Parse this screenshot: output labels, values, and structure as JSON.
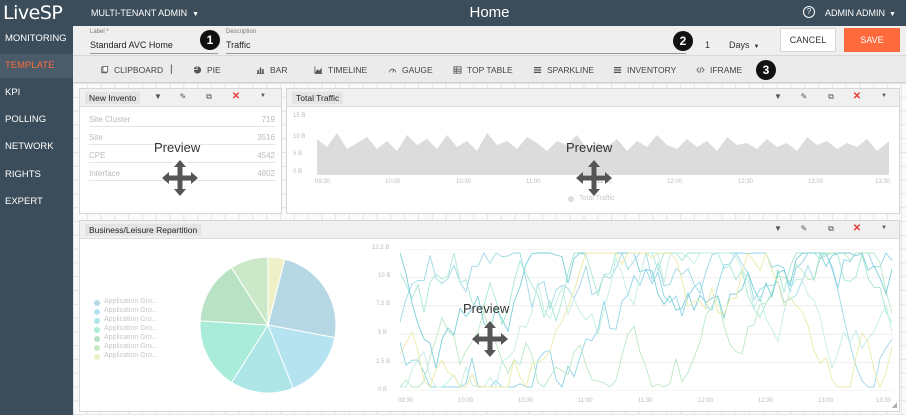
{
  "app": {
    "logo": "LiveSP",
    "tenant": "MULTI-TENANT ADMIN",
    "page_title": "Home",
    "user": "ADMIN ADMIN"
  },
  "sidebar": {
    "items": [
      {
        "label": "MONITORING",
        "active": false
      },
      {
        "label": "TEMPLATE",
        "active": true
      },
      {
        "label": "KPI",
        "active": false
      },
      {
        "label": "POLLING",
        "active": false
      },
      {
        "label": "NETWORK",
        "active": false
      },
      {
        "label": "RIGHTS",
        "active": false
      },
      {
        "label": "EXPERT",
        "active": false
      }
    ]
  },
  "editbar": {
    "label_caption": "Label *",
    "label_value": "Standard AVC Home",
    "desc_caption": "Description",
    "desc_value": "Traffic",
    "days_num": "1",
    "days_unit": "Days",
    "cancel": "CANCEL",
    "save": "SAVE",
    "badges": [
      "1",
      "2",
      "3"
    ]
  },
  "toolbar": {
    "items": [
      "CLIPBOARD",
      "PIE",
      "BAR",
      "TIMELINE",
      "GAUGE",
      "TOP TABLE",
      "SPARKLINE",
      "INVENTORY",
      "IFRAME"
    ],
    "separator": "|"
  },
  "preview_label": "Preview",
  "widgets": {
    "inventory": {
      "title": "New Invento",
      "rows": [
        {
          "name": "Site Cluster",
          "value": "719"
        },
        {
          "name": "Site",
          "value": "3516"
        },
        {
          "name": "CPE",
          "value": "4542"
        },
        {
          "name": "Interface",
          "value": "4802"
        }
      ]
    },
    "traffic": {
      "title": "Total Traffic",
      "y_ticks": [
        "15 B",
        "10 B",
        "5 B",
        "0 B"
      ],
      "x_ticks": [
        "09:30",
        "10:00",
        "10:30",
        "11:00",
        "11:30",
        "12:00",
        "12:30",
        "13:00",
        "13:30"
      ],
      "legend": "Total Traffic"
    },
    "business": {
      "title": "Business/Leisure Repartition",
      "legend": [
        "Application Gro...",
        "Application Gro...",
        "Application Gro...",
        "Application Gro...",
        "Application Gro...",
        "Application Gro...",
        "Application Gro..."
      ],
      "y_ticks": [
        "12.5 B",
        "10 B",
        "7.5 B",
        "5 B",
        "2.5 B",
        "0 B"
      ],
      "x_ticks": [
        "09:30",
        "10:00",
        "10:30",
        "11:00",
        "11:30",
        "12:00",
        "12:30",
        "13:00",
        "13:30"
      ]
    }
  },
  "colors": {
    "accent": "#ff6a3d",
    "sidebar_bg": "#3b4d5a",
    "delete": "#e53935",
    "area_fill": "#dcdcdc"
  },
  "pie_colors": [
    "#b6d7e4",
    "#b5e3f0",
    "#aee6e8",
    "#a9ecd9",
    "#b9e2c4",
    "#cbe9c9",
    "#eef0c8"
  ],
  "pie_data": [
    0.24,
    0.16,
    0.15,
    0.17,
    0.15,
    0.09,
    0.04
  ],
  "line_colors": [
    "#9fd8e6",
    "#a6e8d2",
    "#8fd4e8",
    "#b8e8c4",
    "#7ccfd9",
    "#c2eee2",
    "#eceaa8"
  ]
}
